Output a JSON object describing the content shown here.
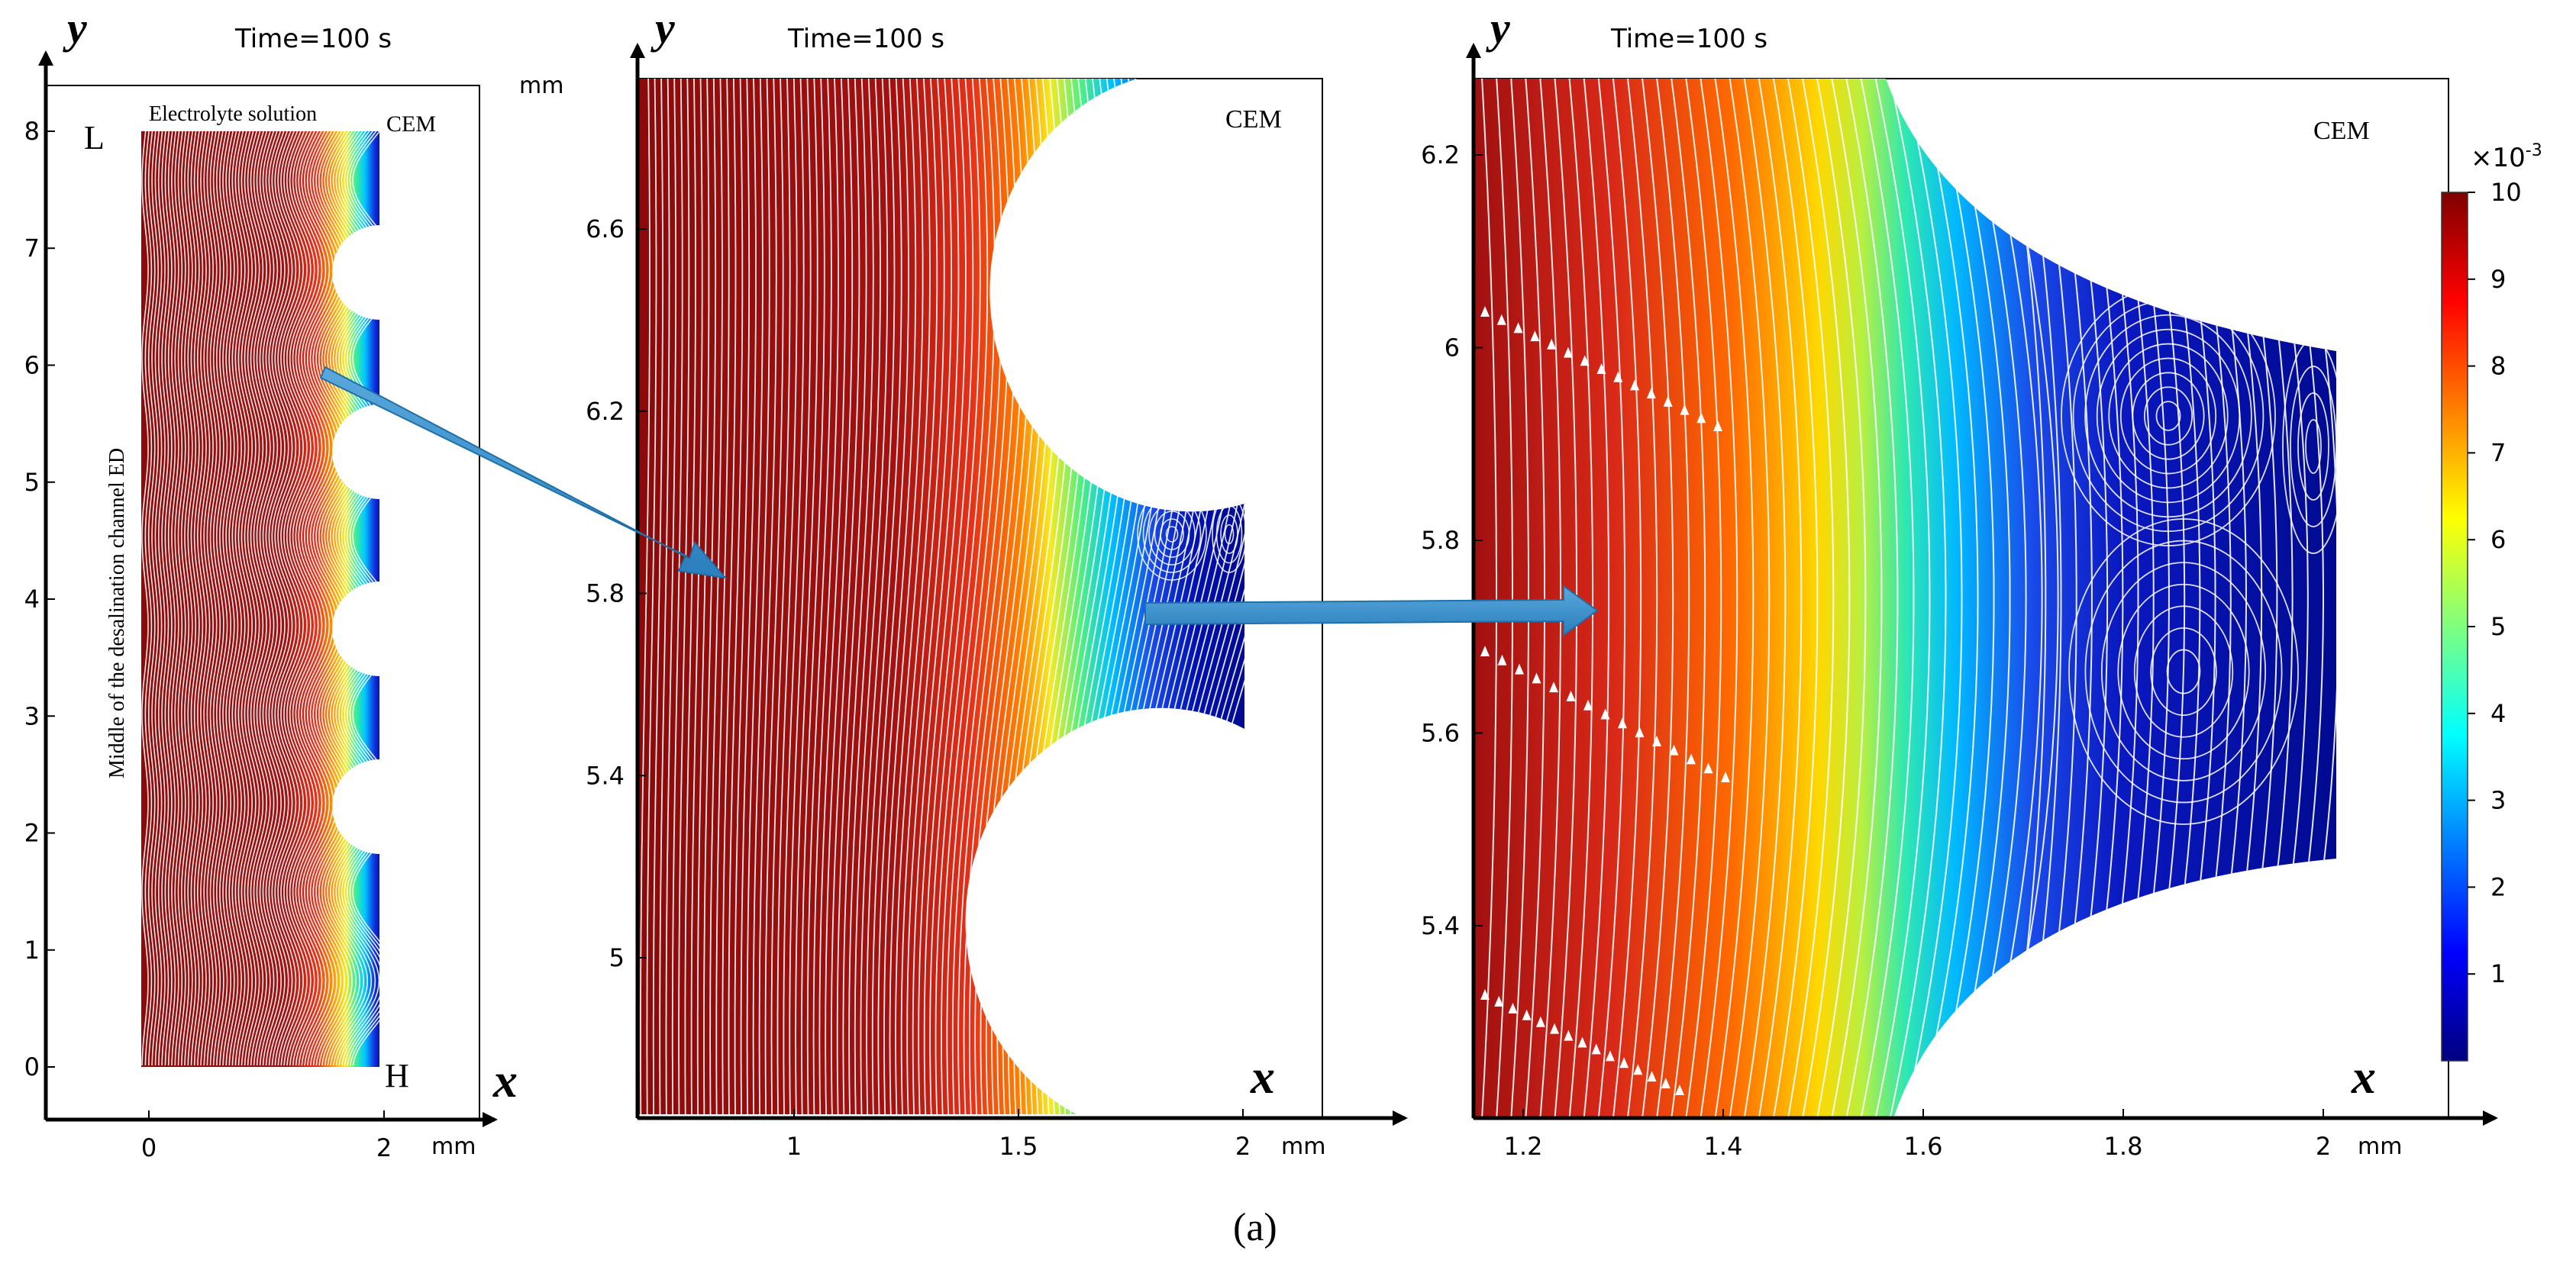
{
  "figure": {
    "caption": "(a)",
    "time_label": "Time=100 s",
    "unit": "mm",
    "axis_x_letter": "x",
    "axis_y_letter": "y"
  },
  "panel1": {
    "time": "Time=100 s",
    "x_ticks": [
      "0",
      "2"
    ],
    "y_ticks": [
      "0",
      "1",
      "2",
      "3",
      "4",
      "5",
      "6",
      "7",
      "8"
    ],
    "unit": "mm",
    "label_L": "L",
    "label_H": "H",
    "label_top": "Electrolyte solution",
    "label_cem": "CEM",
    "label_side": "Middle of the desalination channel ED"
  },
  "panel2": {
    "time": "Time=100 s",
    "x_ticks": [
      "1",
      "1.5",
      "2"
    ],
    "y_ticks": [
      "5",
      "5.4",
      "5.8",
      "6.2",
      "6.6"
    ],
    "unit_x": "mm",
    "unit_y": "mm",
    "label_cem": "CEM"
  },
  "panel3": {
    "time": "Time=100 s",
    "x_ticks": [
      "1.2",
      "1.4",
      "1.6",
      "1.8",
      "2"
    ],
    "y_ticks": [
      "5.4",
      "5.6",
      "5.8",
      "6",
      "6.2"
    ],
    "unit_x": "mm",
    "label_cem": "CEM"
  },
  "colorbar": {
    "exponent_base": "×10",
    "exponent_power": "-3",
    "ticks": [
      "1",
      "2",
      "3",
      "4",
      "5",
      "6",
      "7",
      "8",
      "9",
      "10"
    ],
    "min": 0,
    "max": 10,
    "colors": [
      "#00007f",
      "#0000ff",
      "#007fff",
      "#00ffff",
      "#7fff7f",
      "#ffff00",
      "#ff7f00",
      "#ff0000",
      "#7f0000"
    ]
  }
}
